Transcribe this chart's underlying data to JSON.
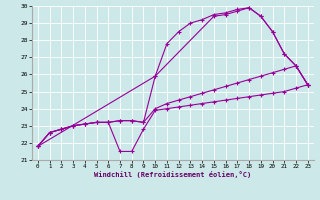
{
  "xlabel": "Windchill (Refroidissement éolien,°C)",
  "bg_color": "#cce8e8",
  "line_color": "#990099",
  "xlim_min": -0.5,
  "xlim_max": 23.5,
  "ylim_min": 21,
  "ylim_max": 30,
  "xticks": [
    0,
    1,
    2,
    3,
    4,
    5,
    6,
    7,
    8,
    9,
    10,
    11,
    12,
    13,
    14,
    15,
    16,
    17,
    18,
    19,
    20,
    21,
    22,
    23
  ],
  "yticks": [
    21,
    22,
    23,
    24,
    25,
    26,
    27,
    28,
    29,
    30
  ],
  "line1_x": [
    0,
    1,
    2,
    3,
    4,
    5,
    6,
    7,
    8,
    9,
    10,
    11,
    12,
    13,
    14,
    15,
    16,
    17,
    18,
    19,
    20,
    21,
    22,
    23
  ],
  "line1_y": [
    21.8,
    22.6,
    22.8,
    23.0,
    23.1,
    23.2,
    23.2,
    21.5,
    21.5,
    22.8,
    23.9,
    24.0,
    24.1,
    24.2,
    24.3,
    24.4,
    24.5,
    24.6,
    24.7,
    24.8,
    24.9,
    25.0,
    25.2,
    25.4
  ],
  "line2_x": [
    0,
    1,
    2,
    3,
    4,
    5,
    6,
    7,
    8,
    9,
    10,
    11,
    12,
    13,
    14,
    15,
    16,
    17,
    18,
    19,
    20,
    21,
    22,
    23
  ],
  "line2_y": [
    21.8,
    22.6,
    22.8,
    23.0,
    23.1,
    23.2,
    23.2,
    23.3,
    23.3,
    23.2,
    24.0,
    24.3,
    24.5,
    24.7,
    24.9,
    25.1,
    25.3,
    25.5,
    25.7,
    25.9,
    26.1,
    26.3,
    26.5,
    25.4
  ],
  "line3_x": [
    0,
    1,
    2,
    3,
    4,
    5,
    6,
    7,
    8,
    9,
    10,
    11,
    12,
    13,
    14,
    15,
    16,
    17,
    18,
    19,
    20,
    21,
    22,
    23
  ],
  "line3_y": [
    21.8,
    22.6,
    22.8,
    23.0,
    23.1,
    23.2,
    23.2,
    23.3,
    23.3,
    23.2,
    25.9,
    27.8,
    28.5,
    29.0,
    29.2,
    29.5,
    29.6,
    29.8,
    29.9,
    29.4,
    28.5,
    27.2,
    26.5,
    25.4
  ],
  "line4_x": [
    0,
    10,
    15,
    16,
    17,
    18,
    19,
    20,
    21,
    22,
    23
  ],
  "line4_y": [
    21.8,
    25.9,
    29.4,
    29.5,
    29.7,
    29.9,
    29.4,
    28.5,
    27.2,
    26.5,
    25.4
  ]
}
